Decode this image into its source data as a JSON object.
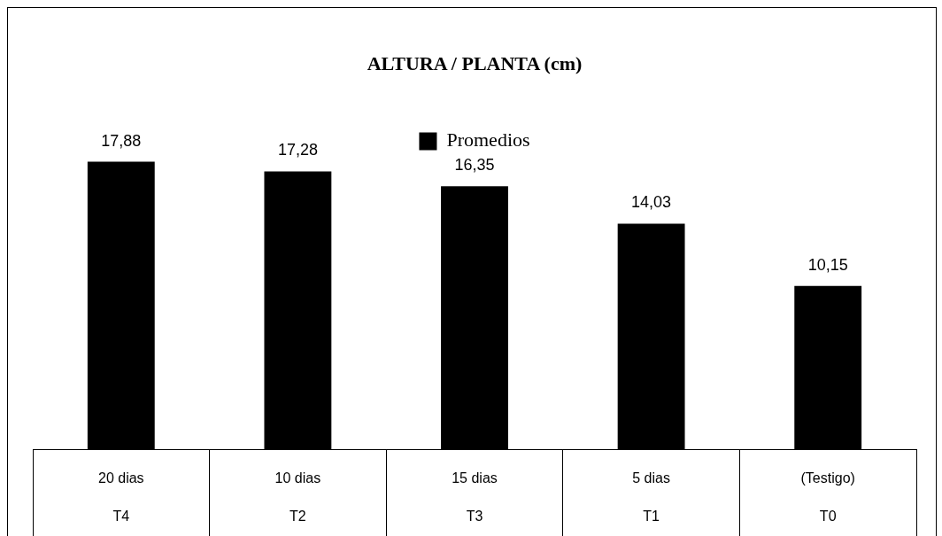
{
  "chart_data": {
    "type": "bar",
    "title": "ALTURA / PLANTA (cm)",
    "categories": [
      "20 dias\nT4",
      "10 dias\nT2",
      "15 dias\nT3",
      "5 dias\nT1",
      "(Testigo)\nT0"
    ],
    "series": [
      {
        "name": "Promedios",
        "color": "#000000",
        "values": [
          17.88,
          17.28,
          16.35,
          14.03,
          10.15
        ],
        "value_labels": [
          "17,88",
          "17,28",
          "16,35",
          "14,03",
          "10,15"
        ]
      }
    ],
    "tick_labels": "x",
    "legend": "top",
    "grid": false
  }
}
